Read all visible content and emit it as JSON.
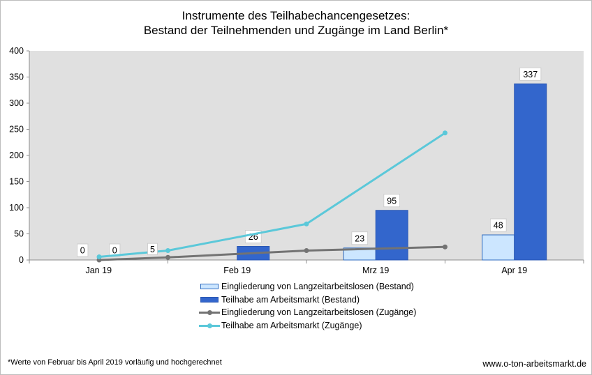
{
  "title_line1": "Instrumente des Teilhabechancengesetzes:",
  "title_line2": "Bestand der Teilnehmenden und Zugänge im Land Berlin*",
  "footnote": "*Werte von Februar bis April 2019 vorläufig und hochgerechnet",
  "source": "www.o-ton-arbeitsmarkt.de",
  "chart_data": {
    "type": "bar",
    "categories": [
      "Jan 19",
      "Feb 19",
      "Mrz 19",
      "Apr 19"
    ],
    "ylim": [
      0,
      400
    ],
    "yticks": [
      0,
      50,
      100,
      150,
      200,
      250,
      300,
      350,
      400
    ],
    "grid": false,
    "legend_position": "bottom",
    "bar_series": [
      {
        "name": "Eingliederung von Langzeitarbeitslosen (Bestand)",
        "values": [
          0,
          0,
          23,
          48
        ],
        "labels": [
          "0",
          "",
          "23",
          "48"
        ],
        "fill": "#cce6ff",
        "stroke": "#2e6bbf"
      },
      {
        "name": "Teilhabe am Arbeitsmarkt (Bestand)",
        "values": [
          0,
          26,
          95,
          337
        ],
        "labels": [
          "0",
          "26",
          "95",
          "337"
        ],
        "fill": "#3366cc",
        "stroke": "#2a57b3"
      }
    ],
    "line_series": [
      {
        "name": "Eingliederung von Langzeitarbeitslosen (Zugänge)",
        "values": [
          0,
          5,
          18,
          25
        ],
        "color": "#737373"
      },
      {
        "name": "Teilhabe am Arbeitsmarkt (Zugänge)",
        "values": [
          6,
          18,
          69,
          243
        ],
        "color": "#5bc8d9"
      }
    ],
    "extra_labels": [
      {
        "category_index": 1,
        "text": "5"
      }
    ],
    "plot_background": "#e0e0e0"
  }
}
